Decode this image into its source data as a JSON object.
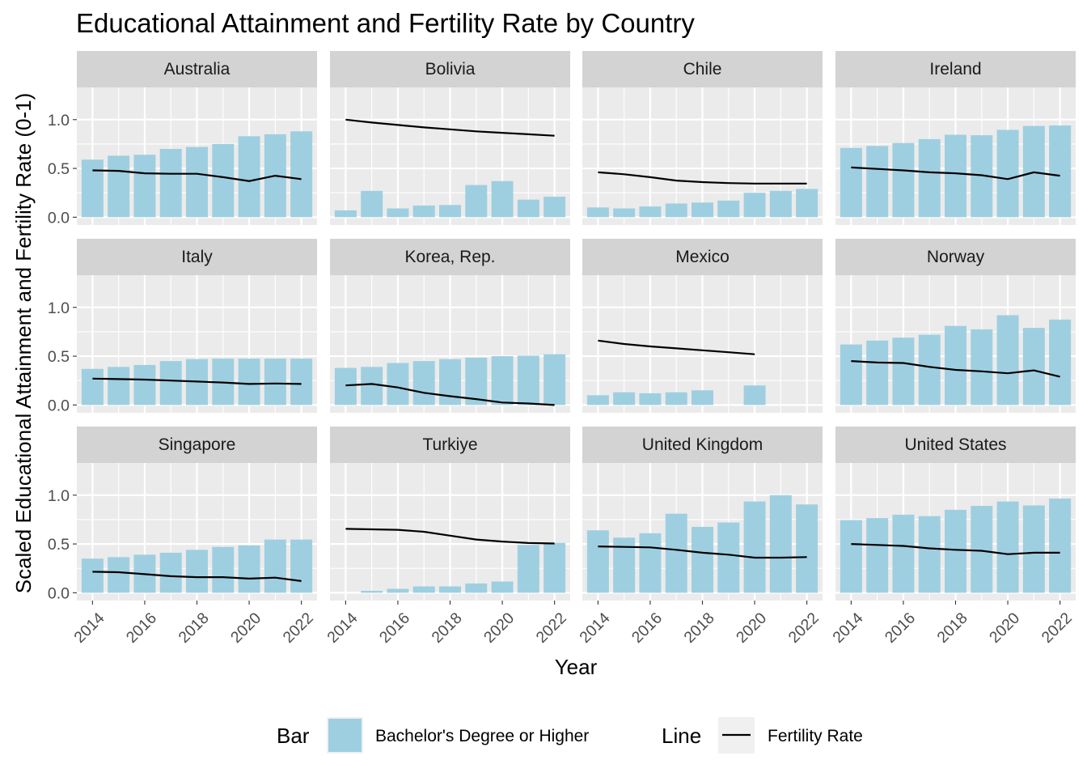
{
  "chart_data": {
    "type": "bar",
    "title": "Educational Attainment and Fertility Rate by Country",
    "xlabel": "Year",
    "ylabel": "Scaled Educational Attainment and Fertility Rate (0-1)",
    "x_ticks": [
      "2014",
      "2016",
      "2018",
      "2020",
      "2022"
    ],
    "y_ticks": [
      "0.0",
      "0.5",
      "1.0"
    ],
    "ylim": [
      -0.08,
      1.33
    ],
    "xlim": [
      2013.4,
      2022.6
    ],
    "years": [
      2014,
      2015,
      2016,
      2017,
      2018,
      2019,
      2020,
      2021,
      2022
    ],
    "bar_color": "#9ecfe1",
    "line_color": "#000000",
    "legend": {
      "bar_title": "Bar",
      "bar_label": "Bachelor's Degree or Higher",
      "line_title": "Line",
      "line_label": "Fertility Rate",
      "position": "bottom"
    },
    "panels": [
      {
        "country": "Australia",
        "bars": [
          0.59,
          0.63,
          0.64,
          0.7,
          0.72,
          0.75,
          0.83,
          0.85,
          0.88
        ],
        "line": [
          0.48,
          0.475,
          0.45,
          0.445,
          0.445,
          0.41,
          0.37,
          0.425,
          0.39
        ]
      },
      {
        "country": "Bolivia",
        "bars": [
          0.07,
          0.27,
          0.09,
          0.12,
          0.125,
          0.33,
          0.37,
          0.18,
          0.21
        ],
        "line": [
          1.0,
          0.97,
          0.945,
          0.92,
          0.9,
          0.88,
          0.865,
          0.85,
          0.835
        ]
      },
      {
        "country": "Chile",
        "bars": [
          0.1,
          0.09,
          0.11,
          0.14,
          0.15,
          0.17,
          0.25,
          0.27,
          0.29
        ],
        "line": [
          0.46,
          0.44,
          0.41,
          0.375,
          0.36,
          0.35,
          0.345,
          0.345,
          0.345
        ]
      },
      {
        "country": "Ireland",
        "bars": [
          0.71,
          0.73,
          0.76,
          0.8,
          0.845,
          0.84,
          0.895,
          0.935,
          0.94
        ],
        "line": [
          0.51,
          0.495,
          0.48,
          0.46,
          0.45,
          0.43,
          0.39,
          0.46,
          0.425
        ]
      },
      {
        "country": "Italy",
        "bars": [
          0.37,
          0.39,
          0.41,
          0.45,
          0.47,
          0.475,
          0.475,
          0.475,
          0.475
        ],
        "line": [
          0.27,
          0.265,
          0.26,
          0.25,
          0.24,
          0.23,
          0.215,
          0.22,
          0.215
        ]
      },
      {
        "country": "Korea, Rep.",
        "bars": [
          0.38,
          0.39,
          0.43,
          0.45,
          0.47,
          0.485,
          0.5,
          0.505,
          0.52
        ],
        "line": [
          0.2,
          0.215,
          0.18,
          0.125,
          0.09,
          0.06,
          0.025,
          0.015,
          0.0
        ]
      },
      {
        "country": "Mexico",
        "bars": [
          0.1,
          0.13,
          0.12,
          0.13,
          0.15,
          null,
          0.2,
          null,
          null
        ],
        "line": [
          0.66,
          0.625,
          0.6,
          0.58,
          0.56,
          0.54,
          0.52,
          null,
          null
        ]
      },
      {
        "country": "Norway",
        "bars": [
          0.62,
          0.66,
          0.69,
          0.72,
          0.81,
          0.775,
          0.92,
          0.79,
          0.875
        ],
        "line": [
          0.45,
          0.435,
          0.43,
          0.39,
          0.36,
          0.345,
          0.325,
          0.355,
          0.29
        ]
      },
      {
        "country": "Singapore",
        "bars": [
          0.35,
          0.365,
          0.39,
          0.41,
          0.44,
          0.47,
          0.485,
          0.545,
          0.545
        ],
        "line": [
          0.215,
          0.21,
          0.19,
          0.17,
          0.16,
          0.16,
          0.145,
          0.155,
          0.12
        ]
      },
      {
        "country": "Turkiye",
        "bars": [
          null,
          0.02,
          0.04,
          0.065,
          0.065,
          0.095,
          0.115,
          0.49,
          0.51
        ],
        "line": [
          0.655,
          0.65,
          0.645,
          0.625,
          0.585,
          0.545,
          0.525,
          0.51,
          0.505
        ]
      },
      {
        "country": "United Kingdom",
        "bars": [
          0.64,
          0.565,
          0.61,
          0.81,
          0.675,
          0.72,
          0.935,
          1.0,
          0.905
        ],
        "line": [
          0.475,
          0.47,
          0.465,
          0.44,
          0.41,
          0.39,
          0.36,
          0.36,
          0.365
        ]
      },
      {
        "country": "United States",
        "bars": [
          0.745,
          0.765,
          0.8,
          0.785,
          0.85,
          0.89,
          0.935,
          0.895,
          0.965
        ],
        "line": [
          0.5,
          0.49,
          0.48,
          0.455,
          0.44,
          0.43,
          0.395,
          0.41,
          0.41
        ]
      }
    ]
  }
}
